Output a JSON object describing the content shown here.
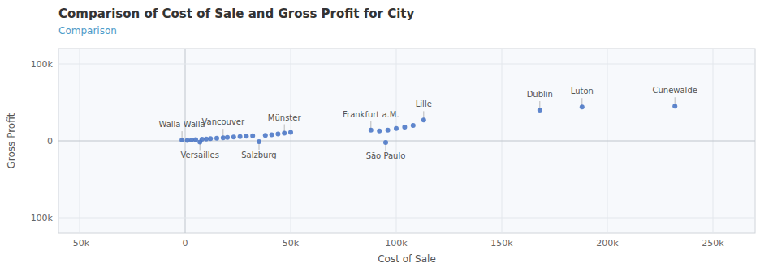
{
  "chart_data": {
    "type": "scatter",
    "title": "Comparison of Cost of Sale and Gross Profit for City",
    "subtitle": "Comparison",
    "x_label": "Cost of Sale",
    "y_label": "Gross Profit",
    "color": "#4472c4",
    "grid": true,
    "xlim": [
      -60000,
      270000
    ],
    "ylim": [
      -120000,
      120000
    ],
    "xticks": [
      {
        "value": -50000,
        "label": "-50k"
      },
      0,
      {
        "value": 50000,
        "label": "50k"
      },
      {
        "value": 100000,
        "label": "100k"
      },
      {
        "value": 150000,
        "label": "150k"
      },
      {
        "value": 200000,
        "label": "200k"
      },
      {
        "value": 250000,
        "label": "250k"
      }
    ],
    "yticks": [
      {
        "value": -100000,
        "label": "-100k"
      },
      0,
      {
        "value": 100000,
        "label": "100k"
      }
    ],
    "x": [
      1000,
      3000,
      5000,
      8000,
      10000,
      12000,
      15000,
      20000,
      23000,
      26000,
      29000,
      32000,
      38000,
      41000,
      44000,
      50000,
      92000,
      96000,
      100000,
      104000,
      108000,
      -1500,
      7000,
      18000,
      35000,
      47000,
      88000,
      95000,
      113000,
      168000,
      188000,
      232000
    ],
    "values": [
      500,
      1000,
      1500,
      2000,
      2500,
      3000,
      3500,
      4500,
      5000,
      5500,
      6000,
      6500,
      7000,
      8000,
      9000,
      11000,
      13000,
      14000,
      16000,
      18000,
      20000,
      1000,
      -1500,
      4000,
      -1000,
      10000,
      14000,
      -2000,
      27000,
      40000,
      44000,
      45000
    ],
    "annotations": [
      {
        "text": "Walla Walla",
        "x": -1500,
        "y": 1000
      },
      {
        "text": "Versailles",
        "x": 7000,
        "y": -1500
      },
      {
        "text": "Vancouver",
        "x": 18000,
        "y": 4000
      },
      {
        "text": "Salzburg",
        "x": 35000,
        "y": -1000
      },
      {
        "text": "Münster",
        "x": 47000,
        "y": 10000
      },
      {
        "text": "Frankfurt a.M.",
        "x": 88000,
        "y": 14000
      },
      {
        "text": "São Paulo",
        "x": 95000,
        "y": -2000
      },
      {
        "text": "Lille",
        "x": 113000,
        "y": 27000
      },
      {
        "text": "Dublin",
        "x": 168000,
        "y": 40000
      },
      {
        "text": "Luton",
        "x": 188000,
        "y": 44000
      },
      {
        "text": "Cunewalde",
        "x": 232000,
        "y": 45000
      }
    ]
  }
}
